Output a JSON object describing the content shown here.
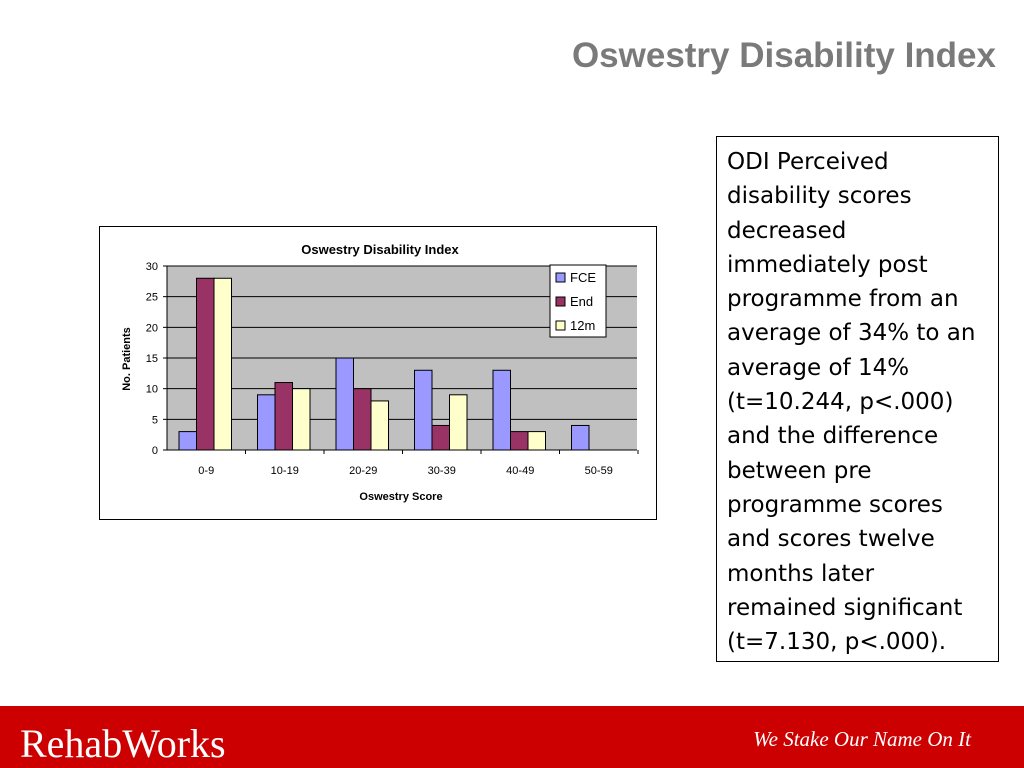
{
  "slide": {
    "title": "Oswestry Disability Index",
    "description": "ODI Perceived disability scores decreased immediately post programme from an average of 34% to an average of 14% (t=10.244, p<.000) and the difference between pre programme scores and scores twelve months later remained significant (t=7.130, p<.000)."
  },
  "footer": {
    "brand": "RehabWorks",
    "tagline": "We Stake Our Name On It",
    "color": "#cc0000"
  },
  "chart_data": {
    "type": "bar",
    "title": "Oswestry Disability Index",
    "xlabel": "Oswestry Score",
    "ylabel": "No. Patients",
    "categories": [
      "0-9",
      "10-19",
      "20-29",
      "30-39",
      "40-49",
      "50-59"
    ],
    "series": [
      {
        "name": "FCE",
        "color": "#9999ff",
        "values": [
          3,
          9,
          15,
          13,
          13,
          4
        ]
      },
      {
        "name": "End",
        "color": "#993366",
        "values": [
          28,
          11,
          10,
          4,
          3,
          0
        ]
      },
      {
        "name": "12m",
        "color": "#ffffcc",
        "values": [
          28,
          10,
          8,
          9,
          3,
          0
        ]
      }
    ],
    "ylim": [
      0,
      30
    ],
    "yticks": [
      0,
      5,
      10,
      15,
      20,
      25,
      30
    ],
    "grid": true,
    "plot_background": "#c0c0c0",
    "legend": "top-right"
  }
}
